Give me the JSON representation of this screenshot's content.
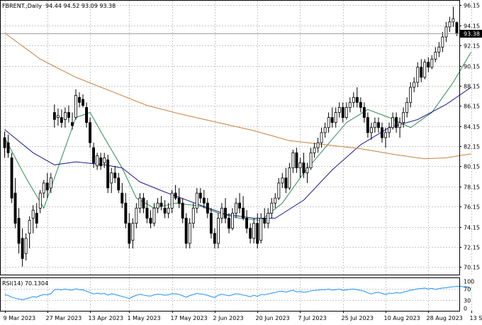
{
  "chart_data": [
    {
      "type": "candlestick",
      "title": "FBRENT.,Daily",
      "ohlc_header": "94.44 94.52 93.09 93.38",
      "last_price": "93.38",
      "ylim": [
        69.4,
        96.6
      ],
      "y_ticks": [
        "96.15",
        "94.15",
        "92.15",
        "90.15",
        "88.15",
        "86.15",
        "84.15",
        "82.15",
        "80.15",
        "78.15",
        "76.15",
        "74.15",
        "72.15",
        "70.15"
      ],
      "x_ticks": [
        {
          "label": "9 Mar 2023",
          "index": 0
        },
        {
          "label": "27 Mar 2023",
          "index": 12
        },
        {
          "label": "13 Apr 2023",
          "index": 24
        },
        {
          "label": "1 May 2023",
          "index": 35
        },
        {
          "label": "17 May 2023",
          "index": 47
        },
        {
          "label": "2 Jun 2023",
          "index": 59
        },
        {
          "label": "20 Jun 2023",
          "index": 71
        },
        {
          "label": "7 Jul 2023",
          "index": 83
        },
        {
          "label": "25 Jul 2023",
          "index": 95
        },
        {
          "label": "10 Aug 2023",
          "index": 107
        },
        {
          "label": "28 Aug 2023",
          "index": 119
        },
        {
          "label": "13 Sep 2023",
          "index": 131
        }
      ],
      "candles": [
        [
          83.0,
          83.6,
          81.0,
          82.0
        ],
        [
          82.5,
          83.3,
          81.0,
          81.5
        ],
        [
          81.0,
          81.5,
          76.5,
          77.0
        ],
        [
          77.5,
          79.0,
          74.0,
          74.5
        ],
        [
          75.0,
          76.0,
          71.5,
          72.5
        ],
        [
          73.0,
          74.0,
          70.2,
          71.0
        ],
        [
          71.5,
          73.5,
          70.8,
          73.0
        ],
        [
          73.5,
          75.2,
          72.0,
          74.8
        ],
        [
          75.0,
          76.3,
          73.5,
          75.8
        ],
        [
          75.5,
          76.5,
          74.0,
          74.5
        ],
        [
          76.0,
          77.8,
          75.5,
          77.5
        ],
        [
          77.5,
          78.8,
          77.0,
          78.5
        ],
        [
          78.5,
          79.5,
          77.0,
          77.8
        ],
        [
          78.0,
          79.5,
          77.5,
          79.0
        ],
        [
          85.5,
          86.3,
          84.0,
          84.8
        ],
        [
          85.0,
          85.9,
          84.2,
          85.2
        ],
        [
          85.0,
          85.8,
          84.0,
          84.5
        ],
        [
          84.8,
          86.0,
          84.0,
          85.5
        ],
        [
          85.5,
          86.2,
          84.5,
          85.0
        ],
        [
          84.5,
          85.5,
          83.8,
          84.2
        ],
        [
          85.0,
          87.8,
          84.8,
          87.2
        ],
        [
          87.0,
          87.5,
          86.0,
          86.5
        ],
        [
          86.8,
          87.3,
          86.0,
          86.2
        ],
        [
          86.0,
          86.5,
          84.0,
          84.5
        ],
        [
          84.5,
          85.0,
          82.0,
          82.5
        ],
        [
          82.0,
          82.5,
          80.0,
          80.5
        ],
        [
          80.2,
          81.5,
          79.8,
          81.2
        ],
        [
          81.0,
          81.5,
          79.8,
          80.2
        ],
        [
          80.5,
          81.5,
          80.0,
          81.0
        ],
        [
          80.8,
          81.3,
          77.5,
          78.0
        ],
        [
          78.5,
          80.0,
          77.5,
          79.5
        ],
        [
          79.5,
          80.2,
          78.5,
          79.0
        ],
        [
          79.0,
          79.5,
          77.5,
          77.8
        ],
        [
          77.5,
          78.5,
          76.0,
          76.5
        ],
        [
          76.5,
          77.5,
          74.0,
          74.5
        ],
        [
          74.5,
          75.5,
          72.0,
          72.5
        ],
        [
          72.8,
          75.0,
          72.0,
          74.5
        ],
        [
          74.5,
          76.5,
          74.0,
          76.0
        ],
        [
          76.0,
          77.5,
          75.5,
          77.0
        ],
        [
          77.0,
          77.5,
          75.5,
          76.0
        ],
        [
          76.0,
          76.8,
          74.5,
          75.0
        ],
        [
          75.0,
          75.8,
          74.0,
          74.5
        ],
        [
          74.5,
          76.5,
          74.2,
          76.0
        ],
        [
          76.0,
          77.0,
          75.5,
          76.5
        ],
        [
          76.5,
          77.2,
          75.8,
          76.2
        ],
        [
          76.0,
          76.8,
          75.0,
          75.5
        ],
        [
          75.5,
          76.5,
          75.0,
          76.0
        ],
        [
          76.0,
          77.8,
          75.5,
          77.5
        ],
        [
          77.5,
          78.3,
          76.8,
          77.0
        ],
        [
          77.0,
          78.0,
          76.0,
          76.5
        ],
        [
          76.5,
          77.0,
          74.5,
          75.0
        ],
        [
          75.0,
          75.5,
          72.0,
          72.5
        ],
        [
          72.5,
          75.0,
          72.0,
          74.5
        ],
        [
          74.5,
          76.5,
          74.0,
          76.0
        ],
        [
          76.0,
          78.0,
          75.5,
          77.5
        ],
        [
          77.5,
          78.0,
          76.5,
          77.0
        ],
        [
          77.0,
          77.8,
          76.0,
          76.5
        ],
        [
          76.5,
          77.0,
          75.0,
          75.5
        ],
        [
          75.5,
          76.0,
          73.0,
          73.5
        ],
        [
          73.5,
          74.0,
          72.0,
          72.5
        ],
        [
          72.5,
          75.5,
          72.0,
          75.0
        ],
        [
          75.0,
          76.5,
          74.5,
          76.0
        ],
        [
          76.0,
          77.0,
          74.5,
          75.0
        ],
        [
          75.0,
          75.5,
          73.5,
          74.0
        ],
        [
          74.0,
          76.0,
          73.8,
          75.5
        ],
        [
          75.5,
          77.0,
          75.0,
          76.5
        ],
        [
          76.5,
          77.5,
          75.5,
          76.0
        ],
        [
          76.0,
          77.2,
          74.8,
          75.0
        ],
        [
          75.0,
          75.8,
          73.5,
          74.0
        ],
        [
          74.0,
          74.5,
          72.5,
          73.0
        ],
        [
          73.0,
          75.0,
          72.5,
          74.5
        ],
        [
          74.5,
          75.5,
          72.0,
          72.5
        ],
        [
          72.8,
          75.5,
          72.5,
          75.0
        ],
        [
          75.0,
          76.0,
          74.0,
          74.5
        ],
        [
          74.5,
          76.0,
          74.0,
          75.5
        ],
        [
          75.5,
          77.0,
          75.0,
          76.5
        ],
        [
          76.5,
          77.5,
          76.0,
          77.0
        ],
        [
          77.0,
          79.0,
          76.8,
          78.5
        ],
        [
          78.5,
          79.5,
          78.0,
          79.0
        ],
        [
          79.0,
          80.0,
          77.5,
          78.0
        ],
        [
          78.0,
          80.5,
          77.8,
          80.0
        ],
        [
          80.0,
          81.8,
          79.5,
          81.5
        ],
        [
          81.5,
          82.0,
          79.5,
          80.0
        ],
        [
          80.0,
          81.0,
          79.0,
          80.5
        ],
        [
          80.5,
          81.5,
          79.0,
          79.5
        ],
        [
          79.5,
          80.5,
          78.5,
          80.0
        ],
        [
          80.0,
          82.0,
          79.8,
          81.5
        ],
        [
          81.5,
          82.5,
          81.0,
          82.0
        ],
        [
          82.0,
          83.0,
          81.5,
          82.5
        ],
        [
          82.5,
          84.0,
          82.0,
          83.5
        ],
        [
          83.5,
          84.5,
          83.0,
          84.0
        ],
        [
          84.0,
          85.5,
          83.5,
          85.0
        ],
        [
          85.0,
          86.0,
          84.0,
          84.5
        ],
        [
          84.5,
          86.0,
          84.0,
          85.5
        ],
        [
          85.5,
          86.5,
          85.0,
          86.0
        ],
        [
          86.0,
          86.5,
          84.5,
          85.0
        ],
        [
          85.0,
          86.5,
          84.8,
          86.0
        ],
        [
          86.0,
          87.0,
          85.5,
          86.5
        ],
        [
          86.5,
          87.5,
          86.0,
          87.0
        ],
        [
          87.0,
          88.0,
          86.0,
          86.5
        ],
        [
          86.5,
          87.0,
          85.5,
          86.0
        ],
        [
          86.0,
          86.5,
          84.5,
          85.0
        ],
        [
          85.0,
          85.5,
          83.0,
          83.5
        ],
        [
          83.5,
          84.5,
          82.8,
          84.0
        ],
        [
          84.0,
          85.0,
          83.5,
          84.5
        ],
        [
          84.5,
          85.0,
          83.5,
          84.0
        ],
        [
          84.0,
          84.5,
          82.5,
          83.0
        ],
        [
          83.0,
          84.0,
          82.0,
          83.5
        ],
        [
          83.5,
          84.5,
          83.0,
          84.0
        ],
        [
          84.0,
          85.5,
          83.8,
          85.0
        ],
        [
          85.0,
          85.5,
          83.5,
          84.0
        ],
        [
          84.0,
          85.0,
          83.0,
          84.5
        ],
        [
          84.5,
          86.0,
          84.0,
          85.5
        ],
        [
          85.5,
          87.0,
          85.0,
          86.5
        ],
        [
          86.5,
          88.5,
          86.0,
          88.0
        ],
        [
          88.0,
          89.0,
          87.5,
          88.5
        ],
        [
          88.5,
          90.5,
          88.0,
          90.0
        ],
        [
          90.0,
          90.8,
          88.5,
          89.0
        ],
        [
          89.0,
          90.8,
          88.8,
          90.5
        ],
        [
          90.5,
          91.0,
          89.5,
          90.0
        ],
        [
          90.0,
          91.2,
          89.8,
          90.8
        ],
        [
          90.8,
          92.0,
          90.5,
          91.5
        ],
        [
          91.5,
          92.5,
          91.0,
          92.0
        ],
        [
          92.0,
          93.5,
          91.5,
          93.0
        ],
        [
          93.0,
          94.5,
          92.5,
          94.0
        ],
        [
          94.0,
          95.0,
          93.5,
          94.5
        ],
        [
          94.5,
          96.0,
          94.0,
          94.8
        ],
        [
          94.44,
          94.52,
          93.09,
          93.38
        ]
      ],
      "series": [
        {
          "name": "MA fast",
          "color": "#2e8b57",
          "points": [
            [
              0,
              83.0
            ],
            [
              6,
              79.0
            ],
            [
              11,
              76.0
            ],
            [
              14,
              79.0
            ],
            [
              20,
              85.0
            ],
            [
              24,
              85.5
            ],
            [
              28,
              83.0
            ],
            [
              33,
              80.0
            ],
            [
              37,
              77.0
            ],
            [
              42,
              76.0
            ],
            [
              48,
              76.5
            ],
            [
              55,
              76.2
            ],
            [
              60,
              75.5
            ],
            [
              66,
              75.0
            ],
            [
              72,
              74.8
            ],
            [
              78,
              76.5
            ],
            [
              84,
              79.5
            ],
            [
              90,
              82.0
            ],
            [
              96,
              84.5
            ],
            [
              102,
              85.8
            ],
            [
              108,
              85.0
            ],
            [
              114,
              84.0
            ],
            [
              120,
              85.5
            ],
            [
              126,
              88.5
            ],
            [
              131,
              91.5
            ]
          ]
        },
        {
          "name": "MA medium",
          "color": "#1c1c8c",
          "points": [
            [
              0,
              83.8
            ],
            [
              8,
              81.5
            ],
            [
              14,
              80.3
            ],
            [
              20,
              80.6
            ],
            [
              28,
              80.3
            ],
            [
              33,
              80.0
            ],
            [
              38,
              78.6
            ],
            [
              45,
              77.6
            ],
            [
              55,
              76.3
            ],
            [
              62,
              75.4
            ],
            [
              70,
              75.0
            ],
            [
              76,
              75.0
            ],
            [
              84,
              76.8
            ],
            [
              92,
              79.8
            ],
            [
              100,
              82.3
            ],
            [
              108,
              84.0
            ],
            [
              116,
              84.8
            ],
            [
              124,
              86.3
            ],
            [
              131,
              88.0
            ]
          ]
        },
        {
          "name": "MA slow",
          "color": "#c8803c",
          "points": [
            [
              0,
              93.4
            ],
            [
              10,
              90.8
            ],
            [
              20,
              89.0
            ],
            [
              30,
              87.6
            ],
            [
              40,
              86.2
            ],
            [
              50,
              85.3
            ],
            [
              60,
              84.5
            ],
            [
              70,
              83.7
            ],
            [
              80,
              82.7
            ],
            [
              90,
              82.3
            ],
            [
              100,
              81.9
            ],
            [
              110,
              81.3
            ],
            [
              118,
              80.9
            ],
            [
              124,
              81.0
            ],
            [
              131,
              81.4
            ]
          ]
        }
      ]
    },
    {
      "type": "line",
      "title": "RSI(14) 70.1304",
      "ylim": [
        0,
        100
      ],
      "y_ticks": [
        "100",
        "70",
        "30",
        "0"
      ],
      "series": [
        {
          "name": "RSI(14)",
          "color": "#1e90ff",
          "values": [
            50,
            46,
            40,
            36,
            33,
            31,
            34,
            38,
            42,
            40,
            46,
            50,
            49,
            53,
            68,
            69,
            67,
            70,
            68,
            66,
            71,
            68,
            67,
            62,
            57,
            52,
            55,
            52,
            54,
            48,
            52,
            50,
            46,
            43,
            39,
            35,
            42,
            47,
            51,
            48,
            45,
            44,
            49,
            51,
            50,
            47,
            49,
            53,
            52,
            50,
            45,
            40,
            46,
            50,
            54,
            52,
            50,
            47,
            42,
            39,
            47,
            51,
            48,
            45,
            49,
            53,
            51,
            48,
            45,
            42,
            47,
            43,
            50,
            49,
            52,
            55,
            57,
            61,
            62,
            59,
            63,
            66,
            60,
            61,
            58,
            60,
            64,
            65,
            66,
            68,
            68,
            70,
            66,
            68,
            70,
            65,
            67,
            69,
            70,
            68,
            65,
            62,
            56,
            52,
            56,
            58,
            54,
            50,
            55,
            54,
            57,
            55,
            59,
            62,
            66,
            68,
            71,
            72,
            74,
            70,
            73,
            69,
            72,
            74,
            75,
            77,
            79,
            80,
            81,
            78,
            79,
            70
          ]
        }
      ]
    }
  ]
}
